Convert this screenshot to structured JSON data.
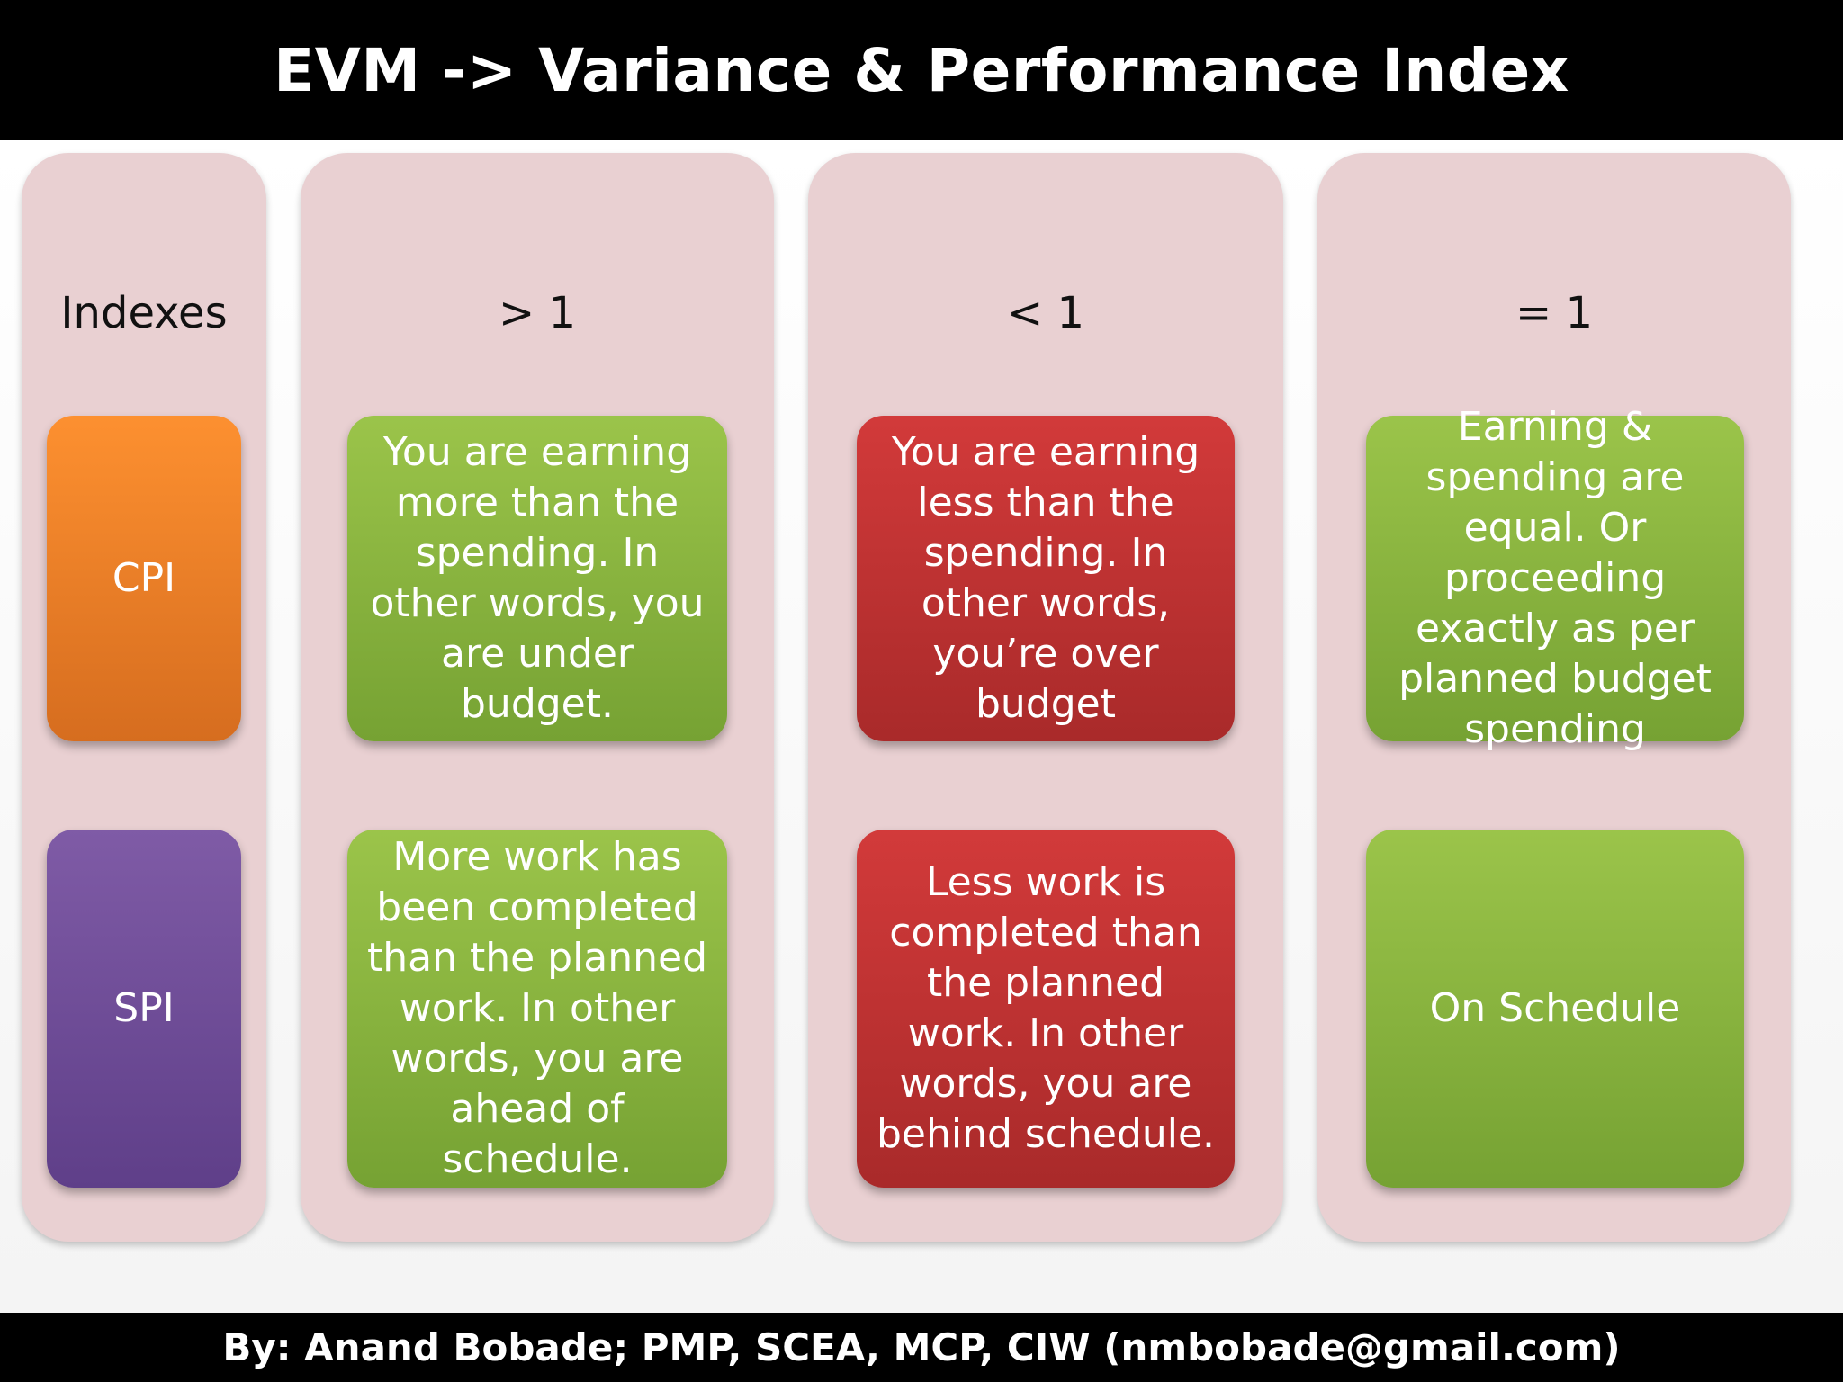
{
  "title": "EVM -> Variance & Performance Index",
  "footer": "By: Anand Bobade; PMP, SCEA, MCP, CIW (nmbobade@gmail.com)",
  "columns": {
    "indexes_header": "Indexes",
    "gt_header": "> 1",
    "lt_header": "< 1",
    "eq_header": "= 1"
  },
  "indexes": {
    "cpi": "CPI",
    "spi": "SPI"
  },
  "cpi_row": {
    "gt": "You are earning more than the spending. In other words, you are under budget.",
    "lt": "You are earning less than the spending. In other words, you’re over budget",
    "eq": "Earning  & spending are equal. Or proceeding exactly as per planned budget spending"
  },
  "spi_row": {
    "gt": "More work has been completed than the planned work. In other words, you are ahead of schedule.",
    "lt": "Less work is completed than the planned work. In other words, you are behind schedule.",
    "eq": "On Schedule"
  },
  "colors": {
    "green": "#8ab93f",
    "red": "#c03232",
    "orange": "#f07f25",
    "purple": "#6f4d97",
    "column_bg": "#e9d0d2"
  }
}
